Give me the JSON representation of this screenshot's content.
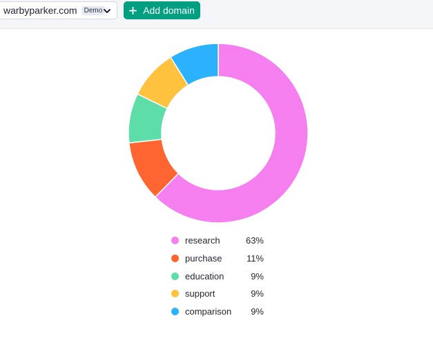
{
  "toolbar": {
    "domain": "warbyparker.com",
    "demo_badge": "Demo",
    "add_domain_label": "Add domain",
    "accent_color": "#009f81"
  },
  "chart_data": {
    "type": "pie",
    "style": "donut",
    "title": "",
    "legend_position": "bottom",
    "slices": [
      {
        "label": "research",
        "value": 63,
        "display": "63%",
        "color": "#f67ff0"
      },
      {
        "label": "purchase",
        "value": 11,
        "display": "11%",
        "color": "#fe6530"
      },
      {
        "label": "education",
        "value": 9,
        "display": "9%",
        "color": "#5ddea8"
      },
      {
        "label": "support",
        "value": 9,
        "display": "9%",
        "color": "#ffc23e"
      },
      {
        "label": "comparison",
        "value": 9,
        "display": "9%",
        "color": "#2cb2fd"
      }
    ]
  }
}
